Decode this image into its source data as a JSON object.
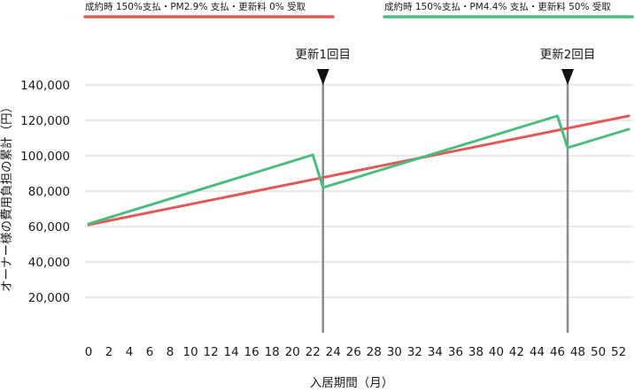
{
  "chart_data": {
    "type": "line",
    "xlabel": "入居期間（月）",
    "ylabel": "オーナー様の費用負担の累計（円）",
    "xlim": [
      0,
      53
    ],
    "ylim": [
      0,
      140000
    ],
    "x_ticks": [
      0,
      2,
      4,
      6,
      8,
      10,
      12,
      14,
      16,
      18,
      20,
      22,
      24,
      26,
      28,
      30,
      32,
      34,
      36,
      38,
      40,
      42,
      44,
      46,
      48,
      50,
      52
    ],
    "y_ticks": [
      20000,
      40000,
      60000,
      80000,
      100000,
      120000,
      140000
    ],
    "y_tick_labels": [
      "20,000",
      "40,000",
      "60,000",
      "80,000",
      "100,000",
      "120,000",
      "140,000"
    ],
    "horizontal_grid": true,
    "legend_position": "top",
    "series": [
      {
        "name": "成約時 150%支払・PM2.9% 支払・更新料 0% 受取",
        "color": "#e05a5a",
        "points": [
          [
            0,
            61000
          ],
          [
            53,
            122500
          ]
        ]
      },
      {
        "name": "成約時 150%支払・PM4.4% 支払・更新料 50% 受取",
        "color": "#4dbd7f",
        "points": [
          [
            0,
            61500
          ],
          [
            22,
            100500
          ],
          [
            23,
            82000
          ],
          [
            46,
            122500
          ],
          [
            47,
            104500
          ],
          [
            53,
            115000
          ]
        ]
      }
    ],
    "markers": [
      {
        "label": "更新1回目",
        "x": 23
      },
      {
        "label": "更新2回目",
        "x": 47
      }
    ]
  }
}
